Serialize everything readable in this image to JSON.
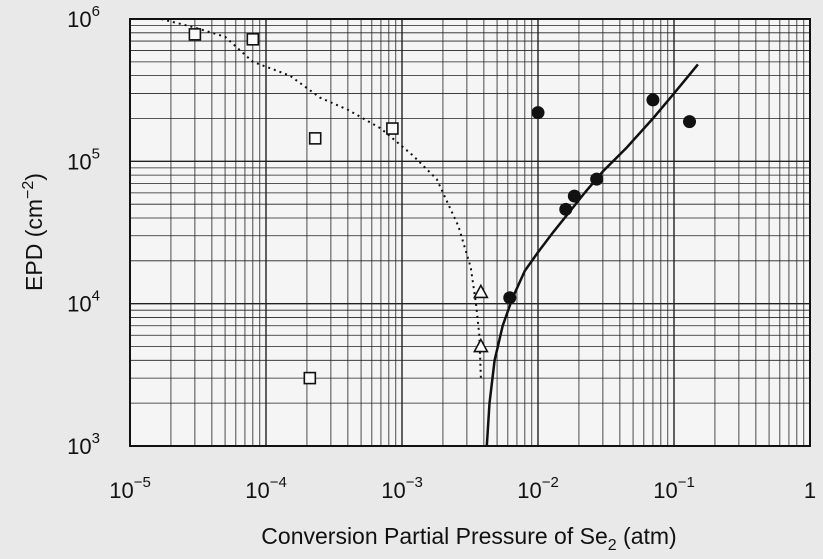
{
  "chart_data": {
    "type": "scatter",
    "title": "",
    "xlabel": "Conversion Partial Pressure of Se",
    "xlabel_sub": "2",
    "xlabel_unit": " (atm)",
    "ylabel": "EPD (cm",
    "ylabel_sup": "−2",
    "ylabel_end": ")",
    "xscale": "log",
    "yscale": "log",
    "xlim": [
      1e-05,
      1
    ],
    "ylim": [
      1000,
      1000000
    ],
    "grid": true,
    "x_ticks": [
      {
        "value": 1e-05,
        "base": "10",
        "exp": "−5"
      },
      {
        "value": 0.0001,
        "base": "10",
        "exp": "−4"
      },
      {
        "value": 0.001,
        "base": "10",
        "exp": "−3"
      },
      {
        "value": 0.01,
        "base": "10",
        "exp": "−2"
      },
      {
        "value": 0.1,
        "base": "10",
        "exp": "−1"
      },
      {
        "value": 1,
        "base": "1",
        "exp": ""
      }
    ],
    "y_ticks": [
      {
        "value": 1000,
        "base": "10",
        "exp": "3"
      },
      {
        "value": 10000,
        "base": "10",
        "exp": "4"
      },
      {
        "value": 100000,
        "base": "10",
        "exp": "5"
      },
      {
        "value": 1000000,
        "base": "10",
        "exp": "6"
      }
    ],
    "series": [
      {
        "marker": "open-square",
        "points": [
          {
            "x": 3e-05,
            "y": 780000
          },
          {
            "x": 8e-05,
            "y": 720000
          },
          {
            "x": 0.00023,
            "y": 145000
          },
          {
            "x": 0.00085,
            "y": 170000
          },
          {
            "x": 0.00021,
            "y": 3000
          }
        ]
      },
      {
        "marker": "open-triangle",
        "points": [
          {
            "x": 0.0038,
            "y": 12000
          },
          {
            "x": 0.0038,
            "y": 5000
          }
        ]
      },
      {
        "marker": "filled-circle",
        "points": [
          {
            "x": 0.0062,
            "y": 11000
          },
          {
            "x": 0.01,
            "y": 220000
          },
          {
            "x": 0.016,
            "y": 46000
          },
          {
            "x": 0.0185,
            "y": 57000
          },
          {
            "x": 0.027,
            "y": 75000
          },
          {
            "x": 0.07,
            "y": 270000
          },
          {
            "x": 0.13,
            "y": 190000
          }
        ]
      }
    ],
    "curves": [
      {
        "style": "dotted",
        "points": [
          [
            1.7e-05,
            1000000
          ],
          [
            3e-05,
            870000
          ],
          [
            5e-05,
            750000
          ],
          [
            8e-05,
            500000
          ],
          [
            0.00015,
            400000
          ],
          [
            0.00025,
            280000
          ],
          [
            0.0004,
            230000
          ],
          [
            0.0007,
            170000
          ],
          [
            0.0012,
            110000
          ],
          [
            0.0018,
            75000
          ],
          [
            0.0026,
            35000
          ],
          [
            0.0032,
            18000
          ],
          [
            0.0035,
            10000
          ],
          [
            0.0037,
            6000
          ],
          [
            0.0038,
            3000
          ]
        ]
      },
      {
        "style": "solid",
        "points": [
          [
            0.0042,
            1000
          ],
          [
            0.0044,
            2000
          ],
          [
            0.0048,
            4000
          ],
          [
            0.0055,
            7000
          ],
          [
            0.0065,
            11000
          ],
          [
            0.008,
            17000
          ],
          [
            0.01,
            23000
          ],
          [
            0.013,
            32000
          ],
          [
            0.017,
            44000
          ],
          [
            0.022,
            60000
          ],
          [
            0.03,
            85000
          ],
          [
            0.045,
            125000
          ],
          [
            0.07,
            200000
          ],
          [
            0.1,
            300000
          ],
          [
            0.15,
            480000
          ]
        ]
      }
    ]
  }
}
